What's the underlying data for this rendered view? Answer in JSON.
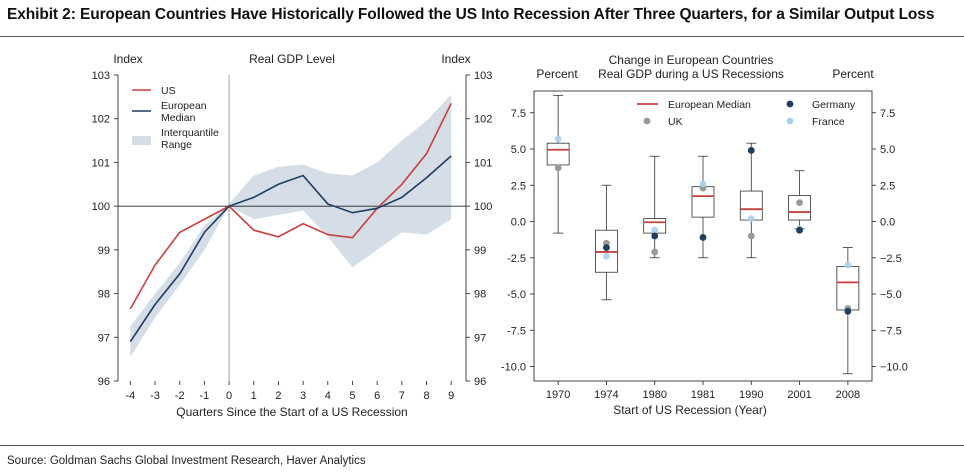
{
  "header": {
    "title": "Exhibit 2: European Countries Have Historically Followed the US Into Recession After Three Quarters, for a Similar Output Loss"
  },
  "footer": {
    "source": "Source: Goldman Sachs Global Investment Research, Haver Analytics"
  },
  "colors": {
    "us": "#c9403f",
    "europe": "#1f3e63",
    "band": "#d5dde6",
    "germany": "#1f3e63",
    "uk": "#999999",
    "france": "#a8d0ea",
    "median": "#c9403f"
  },
  "chart_data": [
    {
      "type": "line",
      "title": "Real GDP Level",
      "ylabel_left": "Index",
      "ylabel_right": "Index",
      "xlabel": "Quarters Since the Start of a US Recession",
      "x": [
        -4,
        -3,
        -2,
        -1,
        0,
        1,
        2,
        3,
        4,
        5,
        6,
        7,
        8,
        9
      ],
      "xticks": [
        "-4",
        "-3",
        "-2",
        "-1",
        "0",
        "1",
        "2",
        "3",
        "4",
        "5",
        "6",
        "7",
        "8",
        "9"
      ],
      "ylim": [
        96,
        103
      ],
      "yticks": [
        "96",
        "97",
        "98",
        "99",
        "100",
        "101",
        "102",
        "103"
      ],
      "legend_position": "top-left",
      "series": [
        {
          "name": "US",
          "values": [
            97.65,
            98.65,
            99.4,
            99.7,
            100.0,
            99.45,
            99.3,
            99.6,
            99.35,
            99.28,
            99.95,
            100.5,
            101.2,
            102.35
          ]
        },
        {
          "name": "European Median",
          "values": [
            96.9,
            97.75,
            98.45,
            99.4,
            100.0,
            100.2,
            100.5,
            100.7,
            100.05,
            99.85,
            99.95,
            100.2,
            100.65,
            101.15
          ]
        }
      ],
      "band": {
        "name": "Interquantile Range",
        "upper": [
          97.25,
          98.0,
          98.7,
          99.55,
          100.05,
          100.7,
          100.9,
          100.95,
          100.75,
          100.7,
          101.0,
          101.5,
          101.95,
          102.55
        ],
        "lower": [
          96.55,
          97.45,
          98.2,
          99.0,
          100.0,
          99.7,
          99.8,
          99.9,
          99.3,
          98.6,
          99.0,
          99.4,
          99.35,
          99.7
        ]
      },
      "hline": 100,
      "vline": 0
    },
    {
      "type": "box",
      "title": "Change in European Countries Real GDP during a US Recessions",
      "ylabel_left": "Percent",
      "ylabel_right": "Percent",
      "xlabel": "Start of US Recession (Year)",
      "categories": [
        "1970",
        "1974",
        "1980",
        "1981",
        "1990",
        "2001",
        "2008"
      ],
      "ylim": [
        -11,
        9
      ],
      "yticks_left": [
        "7.5",
        "5.0",
        "2.5",
        "0.0",
        "-2.5",
        "-5.0",
        "-7.5",
        "-10.0"
      ],
      "yticks_right": [
        "7.5",
        "5.0",
        "2.5",
        "0.0",
        "−2.5",
        "−5.0",
        "−7.5",
        "−10.0"
      ],
      "ytick_values": [
        7.5,
        5.0,
        2.5,
        0.0,
        -2.5,
        -5.0,
        -7.5,
        -10.0
      ],
      "legend_position": "top-center",
      "legend": {
        "median": "European Median",
        "germany": "Germany",
        "uk": "UK",
        "france": "France"
      },
      "boxes": [
        {
          "whisker_low": -0.8,
          "q1": 3.9,
          "median": 4.95,
          "q3": 5.4,
          "whisker_high": 8.7
        },
        {
          "whisker_low": -5.4,
          "q1": -3.5,
          "median": -2.1,
          "q3": -0.6,
          "whisker_high": 2.5
        },
        {
          "whisker_low": -2.5,
          "q1": -0.8,
          "median": -0.05,
          "q3": 0.2,
          "whisker_high": 4.5
        },
        {
          "whisker_low": -2.5,
          "q1": 0.3,
          "median": 1.75,
          "q3": 2.4,
          "whisker_high": 4.5
        },
        {
          "whisker_low": -2.5,
          "q1": 0.1,
          "median": 0.85,
          "q3": 2.1,
          "whisker_high": 5.4
        },
        {
          "whisker_low": -0.5,
          "q1": 0.1,
          "median": 0.65,
          "q3": 1.8,
          "whisker_high": 3.5
        },
        {
          "whisker_low": -10.5,
          "q1": -6.1,
          "median": -4.2,
          "q3": -3.1,
          "whisker_high": -1.8
        }
      ],
      "points": {
        "Germany": [
          null,
          -1.8,
          -1.0,
          -1.1,
          4.9,
          -0.6,
          -6.2
        ],
        "UK": [
          3.7,
          -1.5,
          -2.1,
          2.3,
          -1.0,
          1.3,
          -6.0
        ],
        "France": [
          5.7,
          -2.4,
          -0.6,
          2.6,
          0.2,
          -0.5,
          -3.0
        ]
      }
    }
  ]
}
